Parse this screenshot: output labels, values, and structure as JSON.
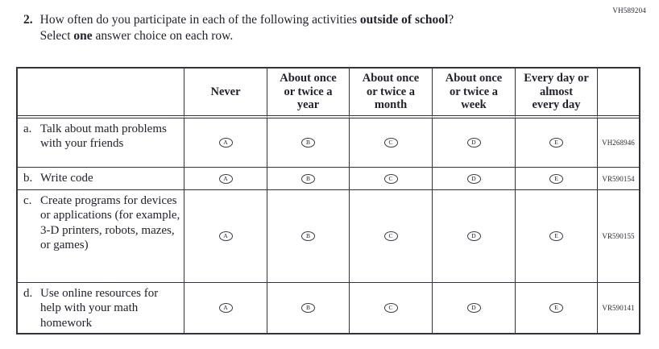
{
  "page": {
    "form_code_top_right": "VH589204"
  },
  "question": {
    "number": "2.",
    "text_before_bold": "How often do you participate in each of the following activities ",
    "bold_phrase": "outside of school",
    "text_after_bold": "?",
    "select_before": "Select ",
    "select_bold": "one",
    "select_after": " answer choice on each row."
  },
  "table": {
    "headers": [
      "",
      "Never",
      [
        "About once",
        "or twice a",
        "year"
      ],
      [
        "About once",
        "or twice a",
        "month"
      ],
      [
        "About once",
        "or twice a",
        "week"
      ],
      [
        "Every day or",
        "almost",
        "every day"
      ],
      ""
    ],
    "option_letters": [
      "A",
      "B",
      "C",
      "D",
      "E"
    ],
    "rows": [
      {
        "letter": "a.",
        "label": "Talk about math problems with your friends",
        "code": "VH268946"
      },
      {
        "letter": "b.",
        "label": "Write code",
        "code": "VR590154"
      },
      {
        "letter": "c.",
        "label": "Create programs for devices or applications (for example, 3-D printers, robots, mazes, or games)",
        "code": "VR590155"
      },
      {
        "letter": "d.",
        "label": "Use online resources for help with your math homework",
        "code": "VR590141"
      }
    ]
  },
  "colors": {
    "ink": "#22222c",
    "border": "#33333b"
  }
}
